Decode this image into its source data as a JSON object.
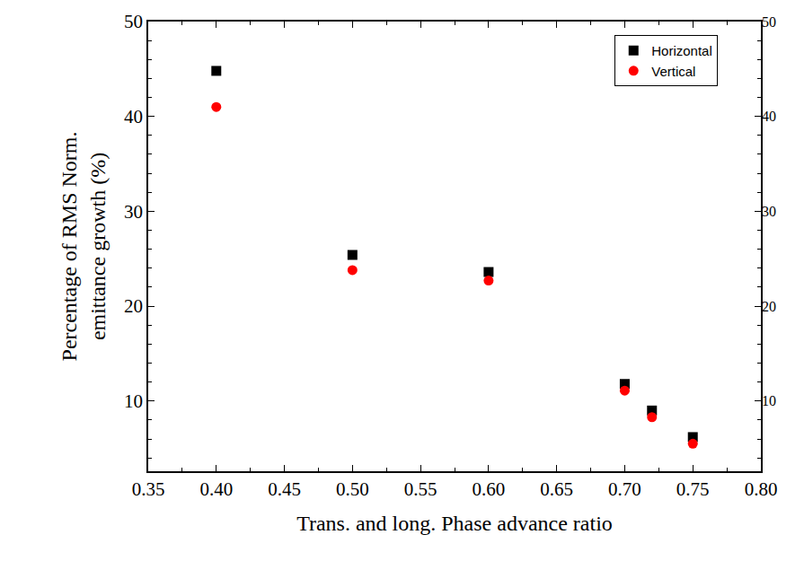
{
  "chart_data": {
    "type": "scatter",
    "x_label": "Trans. and long. Phase advance ratio",
    "y_label": "Percentage of RMS Norm.\nemittance growth (%)",
    "x": [
      0.4,
      0.5,
      0.6,
      0.7,
      0.72,
      0.75
    ],
    "series": [
      {
        "name": "Horizontal",
        "color": "#000000",
        "marker": "square",
        "values": [
          44.8,
          25.4,
          23.6,
          11.8,
          9.0,
          6.2
        ]
      },
      {
        "name": "Vertical",
        "color": "#ff0000",
        "marker": "circle",
        "values": [
          41.0,
          23.8,
          22.7,
          11.1,
          8.3,
          5.5
        ]
      }
    ],
    "xlim": [
      0.35,
      0.8
    ],
    "xticks": [
      {
        "value": 0.35,
        "label": "0.35"
      },
      {
        "value": 0.4,
        "label": "0.40"
      },
      {
        "value": 0.45,
        "label": "0.45"
      },
      {
        "value": 0.5,
        "label": "0.50"
      },
      {
        "value": 0.55,
        "label": "0.55"
      },
      {
        "value": 0.6,
        "label": "0.60"
      },
      {
        "value": 0.65,
        "label": "0.65"
      },
      {
        "value": 0.7,
        "label": "0.70"
      },
      {
        "value": 0.75,
        "label": "0.75"
      },
      {
        "value": 0.8,
        "label": "0.80"
      }
    ],
    "ylim": [
      2.6,
      50
    ],
    "yticks": [
      10,
      20,
      30,
      40,
      50
    ],
    "y2lim": [
      2.6,
      50
    ],
    "y2ticks": [
      10,
      20,
      30,
      40,
      50
    ],
    "grid": false,
    "legend": "upper right"
  }
}
